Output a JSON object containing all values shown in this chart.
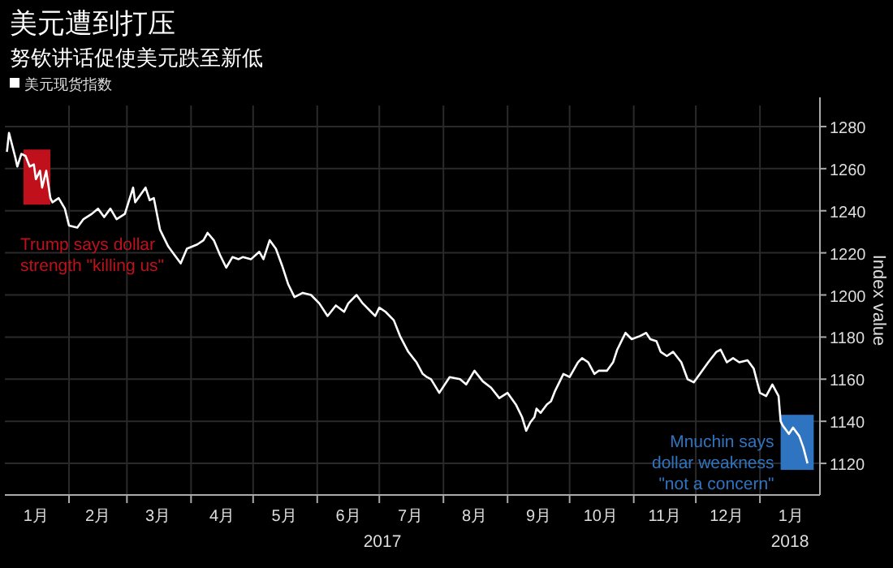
{
  "chart_data": {
    "type": "line",
    "title": "美元遭到打压",
    "subtitle": "努钦讲话促使美元跌至新低",
    "ylabel": "Index value",
    "legend": "top left",
    "grid": true,
    "xlim": [
      "2017-01-01",
      "2018-01-30"
    ],
    "ylim": [
      1105,
      1290
    ],
    "yticks": [
      1120,
      1140,
      1160,
      1180,
      1200,
      1220,
      1240,
      1260,
      1280
    ],
    "xticks": [
      {
        "value": "2017-01-16",
        "label": "1月"
      },
      {
        "value": "2017-02-01",
        "label": null
      },
      {
        "value": "2017-02-15",
        "label": "2月"
      },
      {
        "value": "2017-03-01",
        "label": null
      },
      {
        "value": "2017-03-16",
        "label": "3月"
      },
      {
        "value": "2017-04-01",
        "label": null
      },
      {
        "value": "2017-04-16",
        "label": "4月"
      },
      {
        "value": "2017-05-01",
        "label": null
      },
      {
        "value": "2017-05-16",
        "label": "5月"
      },
      {
        "value": "2017-06-01",
        "label": null
      },
      {
        "value": "2017-06-16",
        "label": "6月"
      },
      {
        "value": "2017-07-01",
        "label": null
      },
      {
        "value": "2017-07-16",
        "label": "7月"
      },
      {
        "value": "2017-08-01",
        "label": null
      },
      {
        "value": "2017-08-16",
        "label": "8月"
      },
      {
        "value": "2017-09-01",
        "label": null
      },
      {
        "value": "2017-09-16",
        "label": "9月"
      },
      {
        "value": "2017-10-01",
        "label": null
      },
      {
        "value": "2017-10-16",
        "label": "10月"
      },
      {
        "value": "2017-11-01",
        "label": null
      },
      {
        "value": "2017-11-16",
        "label": "11月"
      },
      {
        "value": "2017-12-01",
        "label": null
      },
      {
        "value": "2017-12-16",
        "label": "12月"
      },
      {
        "value": "2018-01-01",
        "label": null
      },
      {
        "value": "2018-01-16",
        "label": "1月"
      }
    ],
    "bands": [
      {
        "axis": "x",
        "from": "2017-01-10",
        "to": "2017-01-23",
        "color": "#c0101c",
        "label": "Trump says dollar strength \"killing us\""
      },
      {
        "axis": "x",
        "from": "2018-01-11",
        "to": "2018-01-27",
        "color": "#2f74c0",
        "label": "Mnuchin says dollar weakness \"not a concern\""
      }
    ],
    "annotations": [
      "2017",
      "2018"
    ],
    "series": [
      {
        "name": "美元现货指数",
        "color": "#ffffff",
        "x": [
          "2017-01-02",
          "2017-01-03",
          "2017-01-06",
          "2017-01-07",
          "2017-01-09",
          "2017-01-11",
          "2017-01-13",
          "2017-01-15",
          "2017-01-16",
          "2017-01-18",
          "2017-01-19",
          "2017-01-21",
          "2017-01-23",
          "2017-01-24",
          "2017-01-27",
          "2017-01-30",
          "2017-02-01",
          "2017-02-05",
          "2017-02-08",
          "2017-02-12",
          "2017-02-15",
          "2017-02-18",
          "2017-02-21",
          "2017-02-24",
          "2017-02-28",
          "2017-03-04",
          "2017-03-05",
          "2017-03-10",
          "2017-03-12",
          "2017-03-14",
          "2017-03-17",
          "2017-03-21",
          "2017-03-24",
          "2017-03-27",
          "2017-03-30",
          "2017-04-04",
          "2017-04-07",
          "2017-04-09",
          "2017-04-12",
          "2017-04-15",
          "2017-04-18",
          "2017-04-21",
          "2017-04-24",
          "2017-04-26",
          "2017-04-30",
          "2017-05-04",
          "2017-05-06",
          "2017-05-09",
          "2017-05-12",
          "2017-05-15",
          "2017-05-18",
          "2017-05-21",
          "2017-05-25",
          "2017-05-29",
          "2017-06-02",
          "2017-06-06",
          "2017-06-10",
          "2017-06-14",
          "2017-06-16",
          "2017-06-20",
          "2017-06-23",
          "2017-06-27",
          "2017-06-29",
          "2017-07-01",
          "2017-07-04",
          "2017-07-08",
          "2017-07-11",
          "2017-07-15",
          "2017-07-19",
          "2017-07-22",
          "2017-07-24",
          "2017-07-26",
          "2017-07-30",
          "2017-08-04",
          "2017-08-09",
          "2017-08-12",
          "2017-08-16",
          "2017-08-20",
          "2017-08-24",
          "2017-08-28",
          "2017-09-01",
          "2017-09-05",
          "2017-09-08",
          "2017-09-10",
          "2017-09-12",
          "2017-09-14",
          "2017-09-15",
          "2017-09-17",
          "2017-09-20",
          "2017-09-22",
          "2017-09-24",
          "2017-09-28",
          "2017-10-01",
          "2017-10-05",
          "2017-10-07",
          "2017-10-10",
          "2017-10-13",
          "2017-10-15",
          "2017-10-19",
          "2017-10-22",
          "2017-10-24",
          "2017-10-28",
          "2017-10-31",
          "2017-11-04",
          "2017-11-07",
          "2017-11-09",
          "2017-11-12",
          "2017-11-14",
          "2017-11-17",
          "2017-11-20",
          "2017-11-24",
          "2017-11-27",
          "2017-11-30",
          "2017-12-03",
          "2017-12-07",
          "2017-12-11",
          "2017-12-13",
          "2017-12-16",
          "2017-12-19",
          "2017-12-22",
          "2017-12-26",
          "2017-12-29",
          "2018-01-01",
          "2018-01-04",
          "2018-01-07",
          "2018-01-10",
          "2018-01-11",
          "2018-01-12",
          "2018-01-15",
          "2018-01-17",
          "2018-01-20",
          "2018-01-22",
          "2018-01-24"
        ],
        "values": [
          1268,
          1277,
          1265.5,
          1261,
          1267,
          1266,
          1261,
          1262,
          1255,
          1259,
          1251,
          1259,
          1246,
          1244,
          1246,
          1241,
          1233,
          1232,
          1236,
          1238.5,
          1241,
          1237,
          1241,
          1236,
          1238.5,
          1251,
          1244,
          1251,
          1245,
          1246,
          1231,
          1223,
          1219,
          1215,
          1222,
          1224,
          1226,
          1229.5,
          1226,
          1219,
          1213,
          1218,
          1217,
          1218,
          1217,
          1220.5,
          1217,
          1226,
          1222,
          1214,
          1205,
          1199,
          1201,
          1200,
          1196,
          1190,
          1195,
          1192,
          1196,
          1200,
          1196,
          1192,
          1190,
          1194,
          1192,
          1188,
          1180.5,
          1173,
          1168,
          1162.5,
          1161,
          1160,
          1153.5,
          1161,
          1160,
          1157.5,
          1164,
          1159,
          1156,
          1151,
          1153.5,
          1148,
          1142,
          1135.5,
          1139.5,
          1142,
          1146,
          1144,
          1148,
          1149.5,
          1154.5,
          1162.5,
          1161,
          1168,
          1170,
          1168,
          1162.5,
          1164,
          1164,
          1168,
          1174,
          1182,
          1179,
          1180.5,
          1182,
          1179,
          1178,
          1173,
          1171,
          1173,
          1168,
          1160,
          1158.5,
          1162.5,
          1168,
          1173,
          1174,
          1168,
          1170,
          1168,
          1169,
          1165,
          1153.5,
          1152,
          1157.5,
          1152,
          1140,
          1138,
          1134,
          1137,
          1133,
          1127.5,
          1120
        ]
      }
    ]
  }
}
